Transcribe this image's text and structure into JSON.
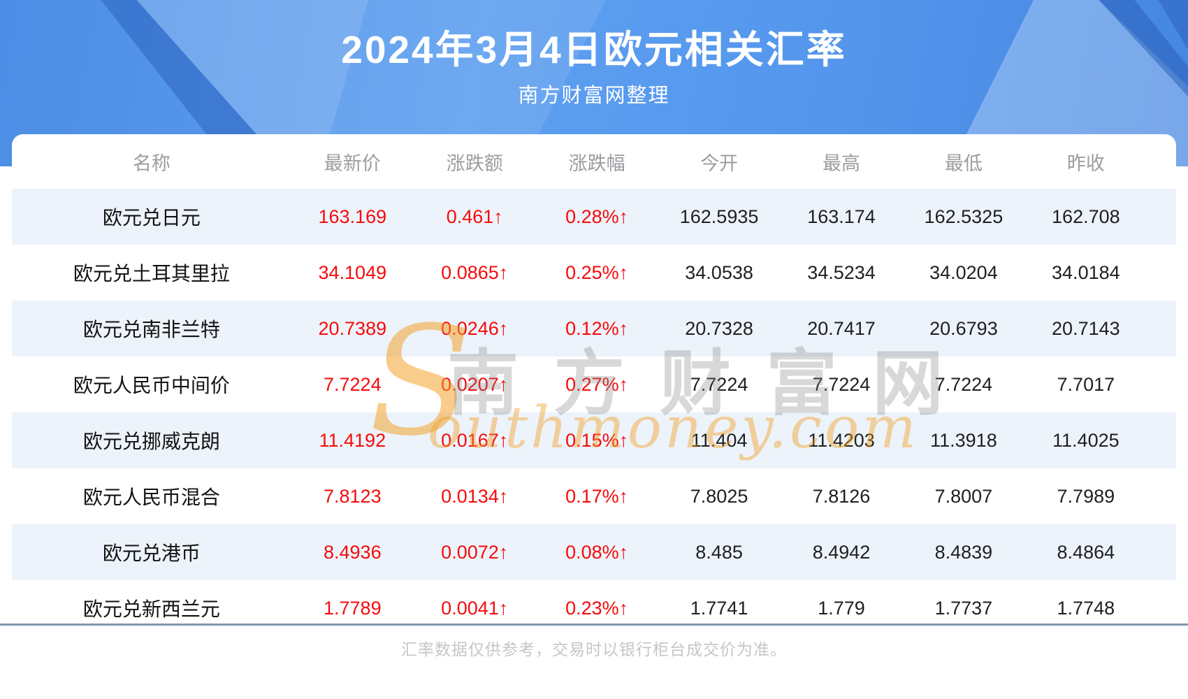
{
  "header": {
    "title": "2024年3月4日欧元相关汇率",
    "subtitle": "南方财富网整理"
  },
  "table": {
    "columns": [
      "名称",
      "最新价",
      "涨跌额",
      "涨跌幅",
      "今开",
      "最高",
      "最低",
      "昨收"
    ],
    "rows": [
      {
        "name": "欧元兑日元",
        "latest": "163.169",
        "change": "0.461↑",
        "change_pct": "0.28%↑",
        "open": "162.5935",
        "high": "163.174",
        "low": "162.5325",
        "prev_close": "162.708"
      },
      {
        "name": "欧元兑土耳其里拉",
        "latest": "34.1049",
        "change": "0.0865↑",
        "change_pct": "0.25%↑",
        "open": "34.0538",
        "high": "34.5234",
        "low": "34.0204",
        "prev_close": "34.0184"
      },
      {
        "name": "欧元兑南非兰特",
        "latest": "20.7389",
        "change": "0.0246↑",
        "change_pct": "0.12%↑",
        "open": "20.7328",
        "high": "20.7417",
        "low": "20.6793",
        "prev_close": "20.7143"
      },
      {
        "name": "欧元人民币中间价",
        "latest": "7.7224",
        "change": "0.0207↑",
        "change_pct": "0.27%↑",
        "open": "7.7224",
        "high": "7.7224",
        "low": "7.7224",
        "prev_close": "7.7017"
      },
      {
        "name": "欧元兑挪威克朗",
        "latest": "11.4192",
        "change": "0.0167↑",
        "change_pct": "0.15%↑",
        "open": "11.404",
        "high": "11.4203",
        "low": "11.3918",
        "prev_close": "11.4025"
      },
      {
        "name": "欧元人民币混合",
        "latest": "7.8123",
        "change": "0.0134↑",
        "change_pct": "0.17%↑",
        "open": "7.8025",
        "high": "7.8126",
        "low": "7.8007",
        "prev_close": "7.7989"
      },
      {
        "name": "欧元兑港币",
        "latest": "8.4936",
        "change": "0.0072↑",
        "change_pct": "0.08%↑",
        "open": "8.485",
        "high": "8.4942",
        "low": "8.4839",
        "prev_close": "8.4864"
      },
      {
        "name": "欧元兑新西兰元",
        "latest": "1.7789",
        "change": "0.0041↑",
        "change_pct": "0.23%↑",
        "open": "1.7741",
        "high": "1.779",
        "low": "1.7737",
        "prev_close": "1.7748"
      }
    ]
  },
  "watermark": {
    "initial": "S",
    "latin": "outhmoney.com",
    "cjk": "南方财富网"
  },
  "footer": {
    "note": "汇率数据仅供参考，交易时以银行柜台成交价为准。"
  },
  "colors": {
    "hero_blue": "#5496ec",
    "accent_red": "#f60b0b",
    "alt_row_blue": "#edf3fb",
    "header_label_gray": "#9c9ca1",
    "divider_blue_gray": "#7e96ab",
    "watermark_orange": "#f39d1c",
    "footer_text_gray": "#c6c6ca"
  }
}
